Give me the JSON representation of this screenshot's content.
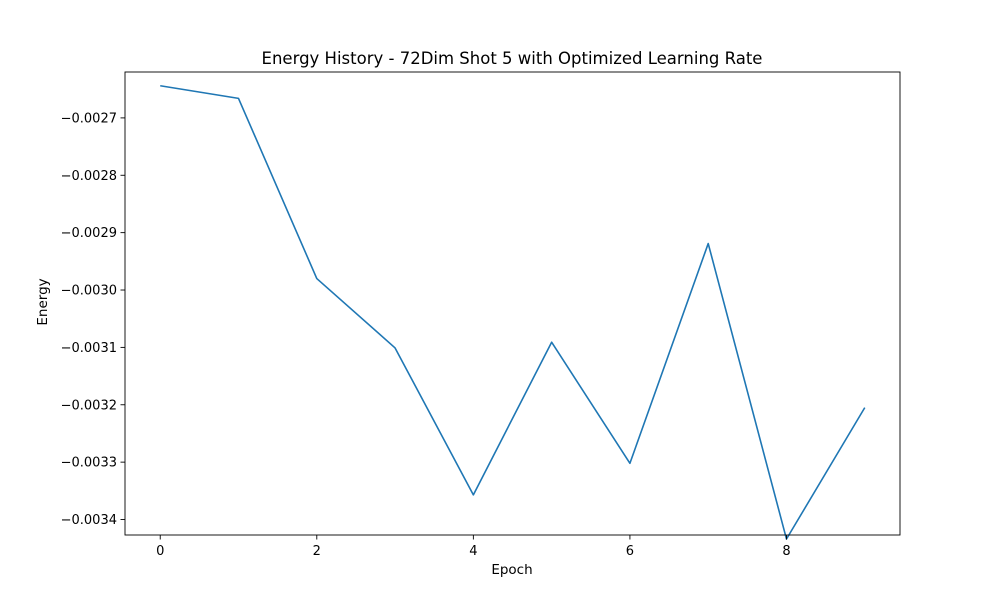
{
  "chart_data": {
    "type": "line",
    "title": "Energy History - 72Dim Shot 5 with Optimized Learning Rate",
    "xlabel": "Epoch",
    "ylabel": "Energy",
    "xlim": [
      -0.45,
      9.45
    ],
    "ylim": [
      -0.003427,
      -0.00262
    ],
    "x_ticks": [
      0,
      2,
      4,
      6,
      8
    ],
    "x_tick_labels": [
      "0",
      "2",
      "4",
      "6",
      "8"
    ],
    "y_ticks": [
      -0.0027,
      -0.0028,
      -0.0029,
      -0.003,
      -0.0031,
      -0.0032,
      -0.0033,
      -0.0034
    ],
    "y_tick_labels": [
      "−0.0027",
      "−0.0028",
      "−0.0029",
      "−0.0030",
      "−0.0031",
      "−0.0032",
      "−0.0033",
      "−0.0034"
    ],
    "grid": false,
    "legend": "none",
    "series": [
      {
        "color": "#1f77b4",
        "x": [
          0,
          1,
          2,
          3,
          4,
          5,
          6,
          7,
          8,
          9
        ],
        "values": [
          -0.002644,
          -0.002666,
          -0.00298,
          -0.003101,
          -0.003357,
          -0.003091,
          -0.003302,
          -0.002919,
          -0.003434,
          -0.003205
        ]
      }
    ]
  }
}
